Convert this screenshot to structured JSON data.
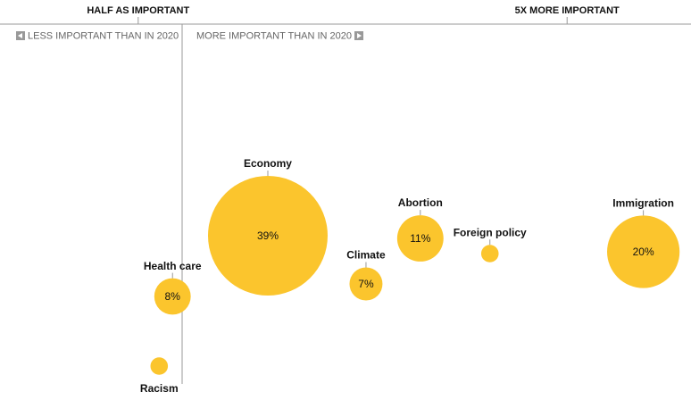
{
  "chart_data": {
    "type": "bubble",
    "xlim": [
      -0.95,
      6.3
    ],
    "xticks": [
      {
        "value": 0.5,
        "label": "HALF AS IMPORTANT"
      },
      {
        "value": 5,
        "label": "5X MORE IMPORTANT"
      }
    ],
    "annotations": [
      "LESS IMPORTANT THAN IN 2020",
      "MORE IMPORTANT THAN IN 2020"
    ],
    "categories": [
      "Racism",
      "Health care",
      "Economy",
      "Climate",
      "Abortion",
      "Foreign policy",
      "Immigration"
    ],
    "x": [
      0.72,
      0.86,
      1.86,
      2.89,
      3.46,
      4.19,
      5.8
    ],
    "sizes": [
      3,
      8,
      39,
      7,
      11,
      3,
      20
    ],
    "value_labels": [
      null,
      "8%",
      "39%",
      "7%",
      "11%",
      null,
      "20%"
    ],
    "color": "#fbc52d"
  }
}
